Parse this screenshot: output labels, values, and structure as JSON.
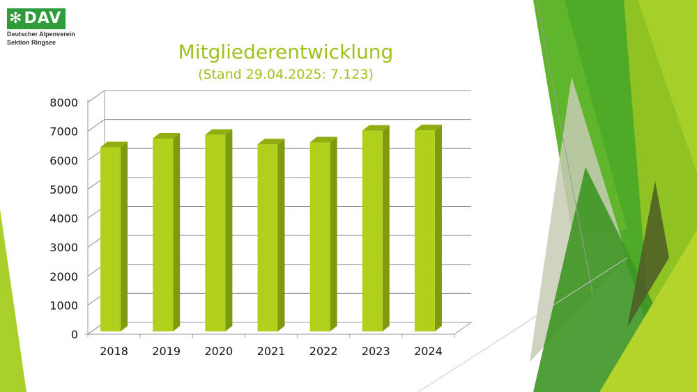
{
  "logo": {
    "name": "DAV",
    "line1": "Deutscher Alpenverein",
    "line2": "Sektion Ringsee"
  },
  "title": "Mitgliederentwicklung",
  "subtitle": "(Stand 29.04.2025: 7.123)",
  "colors": {
    "bar_front": "#b1d01b",
    "bar_side": "#7e9a0e",
    "bar_top": "#8fae12",
    "title": "#9dc21a",
    "logo_green": "#2e9c3a"
  },
  "chart_data": {
    "type": "bar",
    "style": "3d-clustered-column",
    "title": "Mitgliederentwicklung",
    "subtitle": "(Stand 29.04.2025: 7.123)",
    "categories": [
      "2018",
      "2019",
      "2020",
      "2021",
      "2022",
      "2023",
      "2024"
    ],
    "series": [
      {
        "values": [
          6450,
          6750,
          6880,
          6550,
          6620,
          7020,
          7040
        ]
      }
    ],
    "ylim": [
      0,
      8000
    ],
    "yticks": [
      "0",
      "1000",
      "2000",
      "3000",
      "4000",
      "5000",
      "6000",
      "7000",
      "8000"
    ],
    "grid": true,
    "legend": "none"
  }
}
